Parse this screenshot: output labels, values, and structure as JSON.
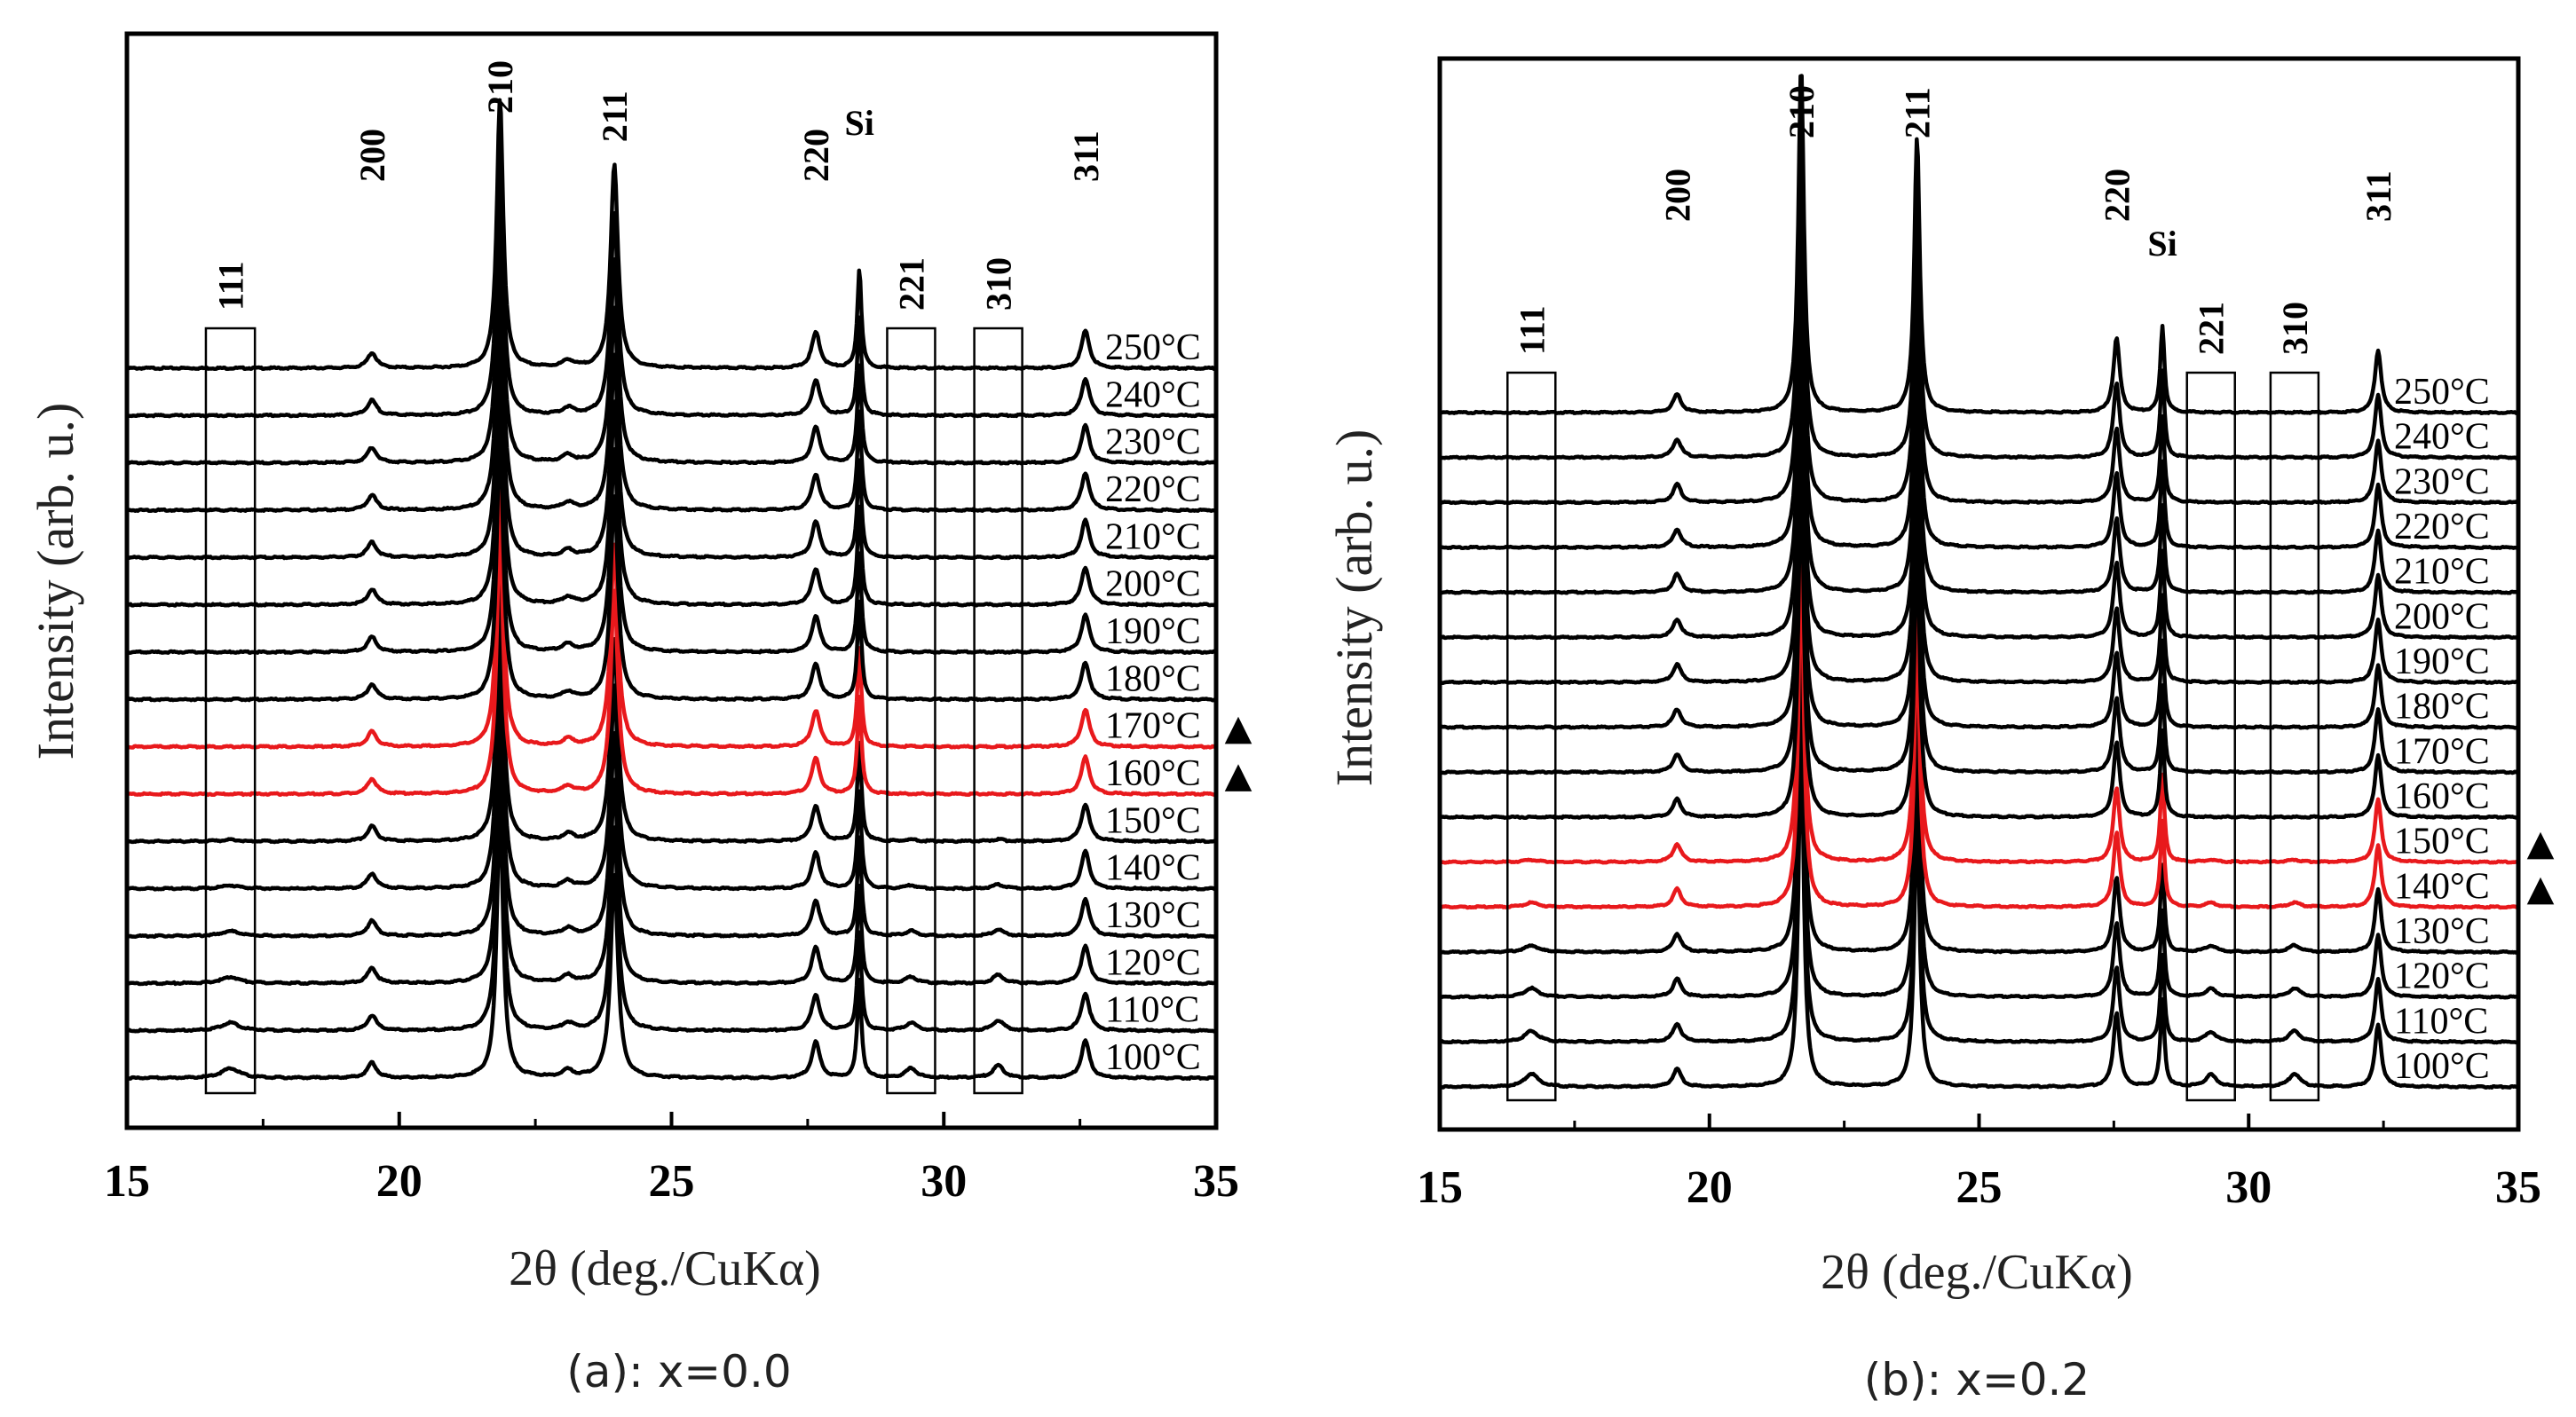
{
  "chart_data": [
    {
      "id": "a",
      "type": "line",
      "caption": "(a): x=0.0",
      "xlabel": "2θ (deg./CuKα)",
      "ylabel": "Intensity (arb. u.)",
      "xlim": [
        15,
        35
      ],
      "xticks": [
        15,
        20,
        25,
        30,
        35
      ],
      "grid": false,
      "series_color": "#000000",
      "highlight_color": "#e8191c",
      "temperatures": [
        "250°C",
        "240°C",
        "230°C",
        "220°C",
        "210°C",
        "200°C",
        "190°C",
        "180°C",
        "170°C",
        "160°C",
        "150°C",
        "140°C",
        "130°C",
        "120°C",
        "110°C",
        "100°C"
      ],
      "highlighted": [
        "170°C",
        "160°C"
      ],
      "markers": [
        "▲",
        "▲"
      ],
      "peaks": [
        {
          "label": "111",
          "pos": 16.9,
          "height": 0.0,
          "low_temp_height": 0.35,
          "width": 0.2,
          "boxed": true
        },
        {
          "label": "200",
          "pos": 19.5,
          "height": 0.55,
          "width": 0.1
        },
        {
          "label": "210",
          "pos": 21.85,
          "height": 9.8,
          "width": 0.07
        },
        {
          "label": "211",
          "pos": 23.95,
          "height": 7.4,
          "width": 0.08
        },
        {
          "label": "",
          "pos": 23.1,
          "height": 0.25,
          "width": 0.12
        },
        {
          "label": "220",
          "pos": 27.65,
          "height": 1.3,
          "width": 0.09
        },
        {
          "label": "Si",
          "pos": 28.45,
          "height": 3.6,
          "width": 0.045
        },
        {
          "label": "221",
          "pos": 29.4,
          "height": 0.0,
          "low_temp_height": 0.35,
          "width": 0.12,
          "boxed": true
        },
        {
          "label": "310",
          "pos": 31.0,
          "height": 0.0,
          "low_temp_height": 0.45,
          "width": 0.12,
          "boxed": true
        },
        {
          "label": "311",
          "pos": 32.6,
          "height": 1.35,
          "width": 0.09
        }
      ]
    },
    {
      "id": "b",
      "type": "line",
      "caption": "(b): x=0.2",
      "xlabel": "2θ (deg./CuKα)",
      "ylabel": "Intensity (arb. u.)",
      "xlim": [
        15,
        35
      ],
      "xticks": [
        15,
        20,
        25,
        30,
        35
      ],
      "grid": false,
      "series_color": "#000000",
      "highlight_color": "#e8191c",
      "temperatures": [
        "250°C",
        "240°C",
        "230°C",
        "220°C",
        "210°C",
        "200°C",
        "190°C",
        "180°C",
        "170°C",
        "160°C",
        "150°C",
        "140°C",
        "130°C",
        "120°C",
        "110°C",
        "100°C"
      ],
      "highlighted": [
        "150°C",
        "140°C"
      ],
      "markers": [
        "▲",
        "▲"
      ],
      "peaks": [
        {
          "label": "111",
          "pos": 16.7,
          "height": 0.0,
          "low_temp_height": 0.55,
          "width": 0.15,
          "boxed": true
        },
        {
          "label": "200",
          "pos": 19.4,
          "height": 0.75,
          "width": 0.09
        },
        {
          "label": "210",
          "pos": 21.7,
          "height": 14.5,
          "width": 0.06
        },
        {
          "label": "211",
          "pos": 23.85,
          "height": 11.5,
          "width": 0.06
        },
        {
          "label": "220",
          "pos": 27.55,
          "height": 3.1,
          "width": 0.07
        },
        {
          "label": "Si",
          "pos": 28.4,
          "height": 3.6,
          "width": 0.045
        },
        {
          "label": "221",
          "pos": 29.3,
          "height": 0.0,
          "low_temp_height": 0.5,
          "width": 0.12,
          "boxed": true
        },
        {
          "label": "310",
          "pos": 30.85,
          "height": 0.0,
          "low_temp_height": 0.55,
          "width": 0.12,
          "boxed": true
        },
        {
          "label": "311",
          "pos": 32.4,
          "height": 2.6,
          "width": 0.07
        }
      ]
    }
  ]
}
